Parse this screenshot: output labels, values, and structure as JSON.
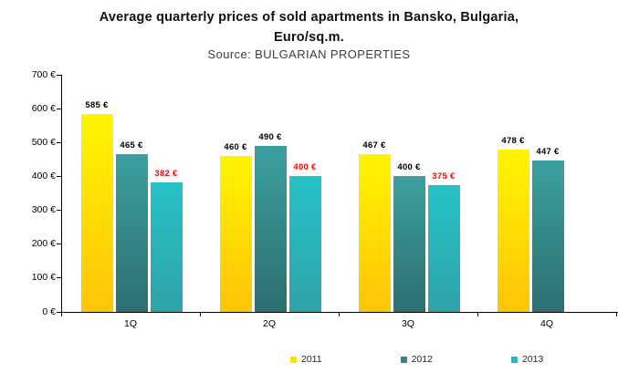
{
  "title": {
    "line1": "Average quarterly prices of sold apartments in Bansko, Bulgaria,",
    "line2": "Euro/sq.m.",
    "source": "Source: BULGARIAN PROPERTIES"
  },
  "chart_data": {
    "type": "bar",
    "title": "Average quarterly prices of sold apartments in Bansko, Bulgaria, Euro/sq.m.",
    "subtitle": "Source: BULGARIAN PROPERTIES",
    "categories": [
      "1Q",
      "2Q",
      "3Q",
      "4Q"
    ],
    "series": [
      {
        "name": "2011",
        "values": [
          585,
          460,
          467,
          478
        ],
        "color_top": "#FFF500",
        "color_bottom": "#FFC407",
        "legend_color": "#FFE100",
        "label_color": "#000000"
      },
      {
        "name": "2012",
        "values": [
          465,
          490,
          400,
          447
        ],
        "color_top": "#3BA0A0",
        "color_bottom": "#2D6F6F",
        "legend_color": "#2F8786",
        "label_color": "#000000"
      },
      {
        "name": "2013",
        "values": [
          382,
          400,
          375,
          null
        ],
        "color_top": "#26C2C7",
        "color_bottom": "#2FA3A8",
        "legend_color": "#2BB7BB",
        "label_color": "#FF0000"
      }
    ],
    "value_suffix": " €",
    "ylim": [
      0,
      700
    ],
    "ytick_step": 100,
    "ytick_labels": [
      "0 €",
      "100 €",
      "200 €",
      "300 €",
      "400 €",
      "500 €",
      "600 €",
      "700 €"
    ],
    "grid": false,
    "legend_position": "bottom"
  }
}
